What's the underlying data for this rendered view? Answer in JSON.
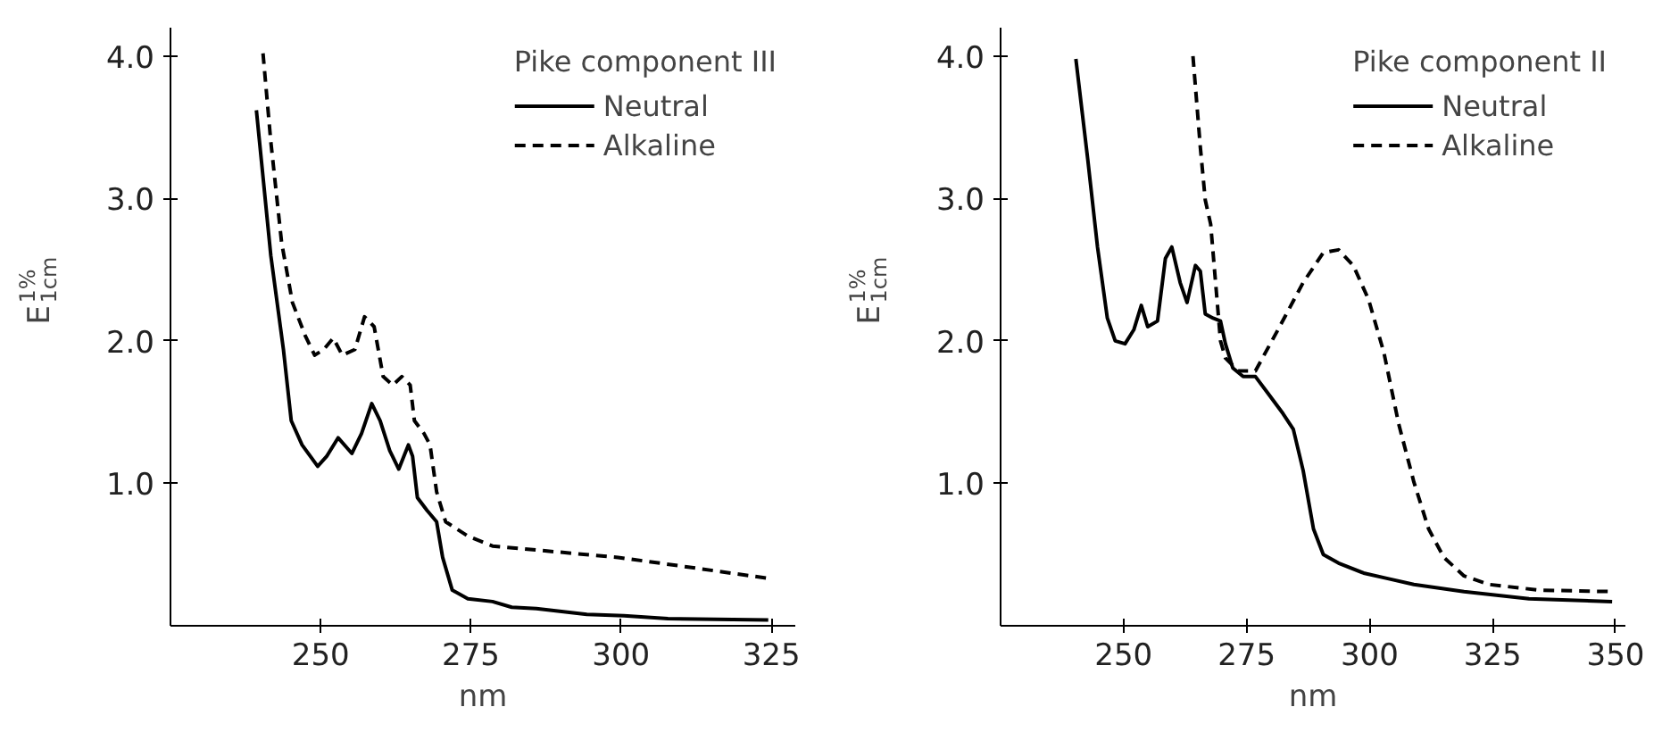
{
  "chart_data": [
    {
      "type": "line",
      "legend_title": "Pike component III",
      "xlabel": "nm",
      "ylabel": "E$^{1%}$$_{1cm}$",
      "xlim": [
        225,
        329
      ],
      "ylim": [
        0,
        4.2
      ],
      "xticks": [
        250,
        275,
        300,
        325
      ],
      "yticks": [
        {
          "value": 1,
          "label": "1.0"
        },
        {
          "value": 2,
          "label": "2.0"
        },
        {
          "value": 3,
          "label": "3.0"
        },
        {
          "value": 4,
          "label": "4.0"
        }
      ],
      "grid": false,
      "legend": "top right",
      "series": [
        {
          "name": "Neutral",
          "color": "#000000",
          "line_style": "solid",
          "x": [
            239.3,
            241.7,
            243.8,
            245.1,
            246.9,
            249.5,
            251.0,
            252.9,
            255.2,
            256.8,
            258.5,
            259.9,
            261.5,
            263.0,
            264.6,
            265.3,
            266.1,
            267.7,
            269.3,
            270.3,
            271.9,
            274.5,
            278.6,
            281.8,
            285.9,
            294.3,
            300.5,
            307.8,
            324.5
          ],
          "values": [
            3.62,
            2.6,
            1.94,
            1.44,
            1.27,
            1.12,
            1.19,
            1.32,
            1.21,
            1.35,
            1.56,
            1.44,
            1.23,
            1.1,
            1.27,
            1.19,
            0.9,
            0.81,
            0.73,
            0.48,
            0.25,
            0.19,
            0.17,
            0.13,
            0.12,
            0.08,
            0.07,
            0.05,
            0.04
          ]
        },
        {
          "name": "Alkaline",
          "color": "#000000",
          "line_style": "dashed",
          "x": [
            240.4,
            241.7,
            243.5,
            245.3,
            247.4,
            249.0,
            250.5,
            252.1,
            253.6,
            255.7,
            257.3,
            258.9,
            260.4,
            262.0,
            263.5,
            264.9,
            265.6,
            267.2,
            268.2,
            269.3,
            270.8,
            274.5,
            278.6,
            289.0,
            299.5,
            309.9,
            325.0
          ],
          "values": [
            4.02,
            3.4,
            2.69,
            2.27,
            2.04,
            1.9,
            1.94,
            2.02,
            1.9,
            1.94,
            2.17,
            2.1,
            1.75,
            1.69,
            1.75,
            1.69,
            1.44,
            1.35,
            1.27,
            0.94,
            0.73,
            0.63,
            0.56,
            0.52,
            0.48,
            0.42,
            0.33
          ]
        }
      ]
    },
    {
      "type": "line",
      "legend_title": "Pike component II",
      "xlabel": "nm",
      "ylabel": "E$^{1%}$$_{1cm}$",
      "xlim": [
        225,
        352
      ],
      "ylim": [
        0,
        4.2
      ],
      "xticks": [
        250,
        275,
        300,
        325,
        350
      ],
      "yticks": [
        {
          "value": 1,
          "label": "1.0"
        },
        {
          "value": 2,
          "label": "2.0"
        },
        {
          "value": 3,
          "label": "3.0"
        },
        {
          "value": 4,
          "label": "4.0"
        }
      ],
      "grid": false,
      "legend": "top right",
      "series": [
        {
          "name": "Neutral",
          "color": "#000000",
          "line_style": "solid",
          "x": [
            240.3,
            242.7,
            244.7,
            246.7,
            248.3,
            250.3,
            252.1,
            253.6,
            254.9,
            256.9,
            258.5,
            259.8,
            261.5,
            262.9,
            264.6,
            265.6,
            266.6,
            268.2,
            269.7,
            270.7,
            272.2,
            274.3,
            276.8,
            279.4,
            282.4,
            284.5,
            286.5,
            288.6,
            290.6,
            293.7,
            298.8,
            303.9,
            309.0,
            319.2,
            332.4,
            349.3
          ],
          "values": [
            3.98,
            3.28,
            2.66,
            2.16,
            2.0,
            1.98,
            2.08,
            2.25,
            2.1,
            2.14,
            2.58,
            2.66,
            2.41,
            2.27,
            2.53,
            2.49,
            2.19,
            2.16,
            2.14,
            1.98,
            1.81,
            1.75,
            1.75,
            1.63,
            1.49,
            1.38,
            1.09,
            0.68,
            0.5,
            0.44,
            0.37,
            0.33,
            0.29,
            0.24,
            0.19,
            0.17
          ]
        },
        {
          "name": "Alkaline",
          "color": "#000000",
          "line_style": "dashed",
          "x": [
            264.1,
            265.6,
            266.6,
            267.7,
            268.7,
            269.7,
            270.7,
            273.3,
            276.8,
            281.4,
            286.5,
            290.6,
            293.7,
            296.7,
            299.8,
            302.9,
            305.9,
            309.0,
            312.0,
            315.1,
            319.2,
            324.3,
            334.5,
            349.3
          ],
          "values": [
            4.0,
            3.36,
            2.99,
            2.82,
            2.41,
            2.0,
            1.88,
            1.79,
            1.79,
            2.08,
            2.41,
            2.62,
            2.64,
            2.53,
            2.29,
            1.92,
            1.42,
            1.01,
            0.68,
            0.48,
            0.35,
            0.29,
            0.25,
            0.24
          ]
        }
      ]
    }
  ]
}
